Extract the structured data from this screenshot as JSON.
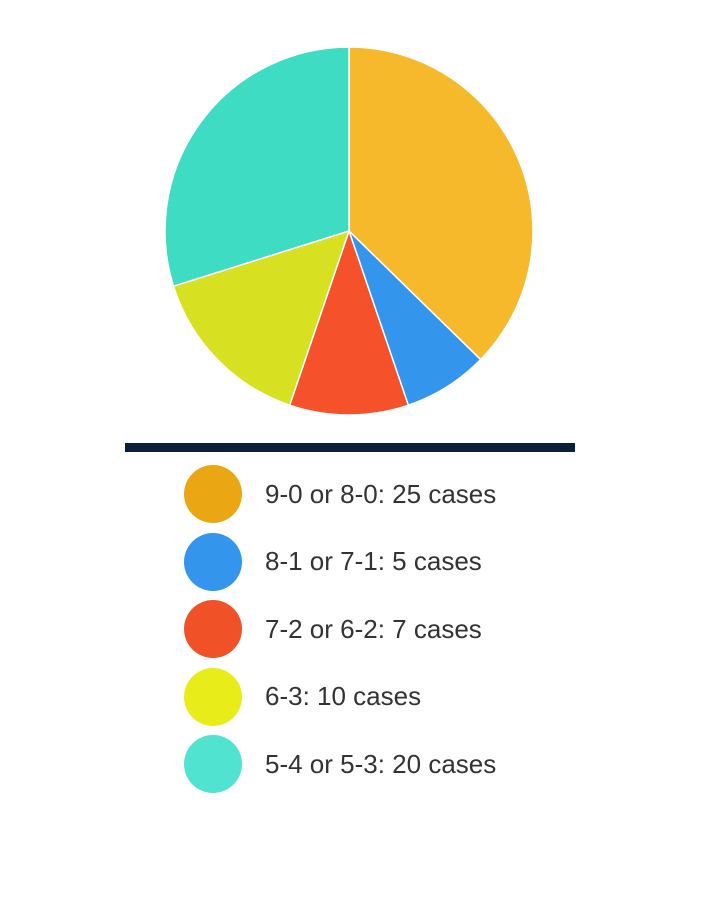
{
  "chart_data": {
    "type": "pie",
    "slices": [
      {
        "label": "9-0 or 8-0: 25 cases",
        "value": 25,
        "color": "#F6B92B",
        "legend_color": "#EAA613"
      },
      {
        "label": "8-1 or 7-1: 5 cases",
        "value": 5,
        "color": "#3396EC",
        "legend_color": "#3396EC"
      },
      {
        "label": "7-2 or 6-2: 7 cases",
        "value": 7,
        "color": "#F5512B",
        "legend_color": "#F05127"
      },
      {
        "label": "6-3: 10 cases",
        "value": 10,
        "color": "#D8E022",
        "legend_color": "#E8ED1A"
      },
      {
        "label": "5-4 or 5-3: 20 cases",
        "value": 20,
        "color": "#3DDCC3",
        "legend_color": "#50E3CF"
      }
    ],
    "start_angle": "12 o'clock",
    "direction": "clockwise",
    "legend_position": "bottom"
  },
  "divider_color": "#0B1F3A"
}
